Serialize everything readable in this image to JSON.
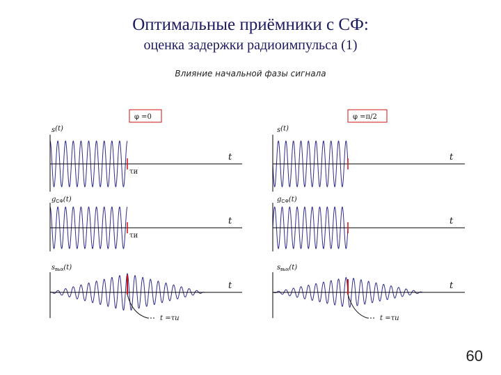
{
  "title": "Оптимальные приёмники с СФ:",
  "subtitle": "оценка задержки радиоимпульса (1)",
  "caption": "Влияние начальной фазы сигнала",
  "page_number": "60",
  "colors": {
    "wave": "#2b2b8c",
    "marker": "#d01010",
    "phase_box_border": "#d01010"
  },
  "panels": {
    "left": {
      "phase_label": "φ  =0",
      "phase": 0,
      "rows": [
        {
          "label_main": "s",
          "label_sub": "",
          "label_arg": "(t)",
          "axis_label": "t",
          "tau_label": "τи"
        },
        {
          "label_main": "g",
          "label_sub": "СФ",
          "label_arg": "(t)",
          "axis_label": "t",
          "tau_label": "τи"
        },
        {
          "label_main": "s",
          "label_sub": "вых",
          "label_arg": "(t)",
          "axis_label": "t",
          "annotation": "t =τи"
        }
      ]
    },
    "right": {
      "phase_label": "φ  =π/2",
      "phase": 1.5708,
      "rows": [
        {
          "label_main": "s",
          "label_sub": "",
          "label_arg": "(t)",
          "axis_label": "t",
          "tau_label": ""
        },
        {
          "label_main": "g",
          "label_sub": "СФ",
          "label_arg": "(t)",
          "axis_label": "t",
          "tau_label": ""
        },
        {
          "label_main": "s",
          "label_sub": "вых",
          "label_arg": "(t)",
          "axis_label": "t",
          "annotation": "t =τи"
        }
      ]
    }
  }
}
